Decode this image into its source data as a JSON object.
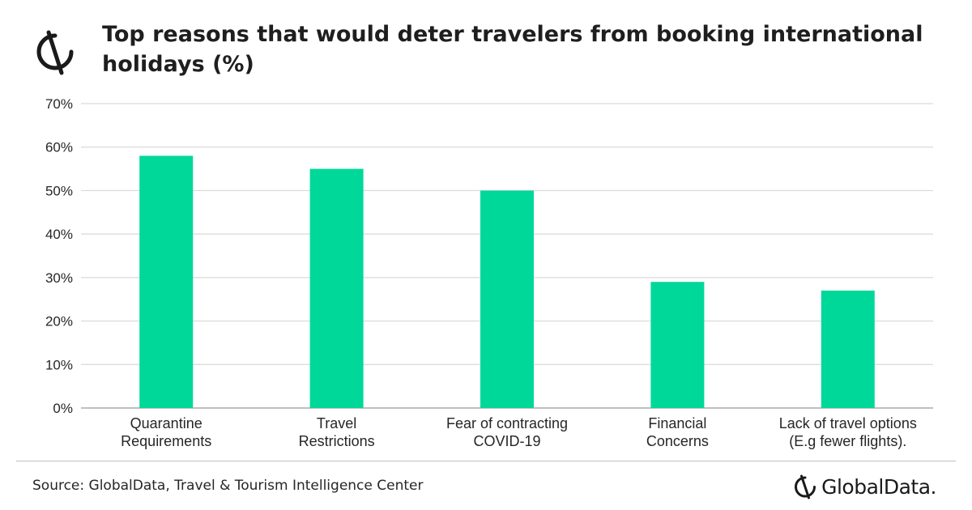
{
  "header": {
    "title": "Top reasons that would deter travelers from booking international holidays (%)"
  },
  "chart_data": {
    "type": "bar",
    "title": "Top reasons that would deter travelers from booking international holidays (%)",
    "categories": [
      "Quarantine Requirements",
      "Travel Restrictions",
      "Fear of contracting COVID-19",
      "Financial Concerns",
      "Lack of travel options (E.g fewer flights)."
    ],
    "category_label_lines": [
      [
        "Quarantine",
        "Requirements"
      ],
      [
        "Travel",
        "Restrictions"
      ],
      [
        "Fear of contracting",
        "COVID-19"
      ],
      [
        "Financial",
        "Concerns"
      ],
      [
        "Lack of travel options",
        "(E.g fewer flights)."
      ]
    ],
    "values": [
      58,
      55,
      50,
      29,
      27
    ],
    "ylim": [
      0,
      70
    ],
    "yticks": [
      0,
      10,
      20,
      30,
      40,
      50,
      60,
      70
    ],
    "ytick_labels": [
      "0%",
      "10%",
      "20%",
      "30%",
      "40%",
      "50%",
      "60%",
      "70%"
    ],
    "xlabel": "",
    "ylabel": "",
    "grid": true,
    "legend": "none",
    "bar_color": "#00d89a",
    "grid_color": "#d9d9d9"
  },
  "footer": {
    "source": "Source: GlobalData, Travel & Tourism Intelligence Center",
    "brand": "GlobalData."
  }
}
